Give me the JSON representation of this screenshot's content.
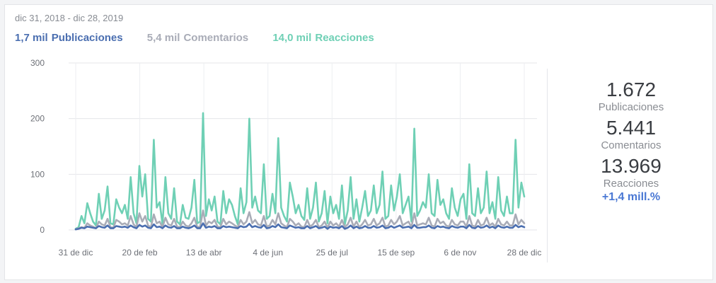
{
  "header": {
    "date_range": "dic 31, 2018 - dic 28, 2019"
  },
  "legend": [
    {
      "value": "1,7 mil",
      "label": "Publicaciones",
      "color": "#4a6eb0"
    },
    {
      "value": "5,4 mil",
      "label": "Comentarios",
      "color": "#a9acb7"
    },
    {
      "value": "14,0 mil",
      "label": "Reacciones",
      "color": "#6fd0b5"
    }
  ],
  "stats": {
    "publicaciones": {
      "value": "1.672",
      "label": "Publicaciones"
    },
    "comentarios": {
      "value": "5.441",
      "label": "Comentarios"
    },
    "reacciones": {
      "value": "13.969",
      "label": "Reacciones",
      "change": "+1,4 mill.%"
    }
  },
  "chart_data": {
    "type": "line",
    "title": "",
    "xlabel": "",
    "ylabel": "",
    "ylim": [
      0,
      300
    ],
    "yticks": [
      0,
      100,
      200,
      300
    ],
    "xticks": [
      "31 de dic",
      "20 de feb",
      "13 de abr",
      "4 de jun",
      "25 de jul",
      "15 de sep",
      "6 de nov",
      "28 de dic"
    ],
    "x_range": [
      "2018-12-31",
      "2019-12-28"
    ],
    "grid": true,
    "legend_position": "top",
    "series": [
      {
        "name": "Reacciones",
        "color": "#6fd0b5",
        "values": [
          2,
          5,
          25,
          12,
          48,
          30,
          15,
          8,
          65,
          20,
          35,
          78,
          12,
          10,
          55,
          40,
          30,
          45,
          20,
          95,
          30,
          12,
          115,
          60,
          100,
          20,
          15,
          162,
          40,
          50,
          10,
          95,
          30,
          20,
          75,
          15,
          10,
          45,
          22,
          20,
          40,
          90,
          12,
          15,
          210,
          25,
          55,
          35,
          60,
          15,
          10,
          70,
          30,
          55,
          45,
          25,
          10,
          75,
          30,
          50,
          200,
          40,
          60,
          35,
          30,
          118,
          20,
          25,
          65,
          30,
          165,
          40,
          25,
          15,
          85,
          60,
          30,
          45,
          25,
          18,
          75,
          20,
          40,
          85,
          15,
          30,
          70,
          12,
          60,
          30,
          45,
          20,
          80,
          10,
          35,
          95,
          20,
          55,
          15,
          40,
          70,
          25,
          35,
          80,
          30,
          45,
          105,
          20,
          25,
          80,
          35,
          60,
          100,
          30,
          45,
          60,
          15,
          182,
          25,
          35,
          50,
          40,
          100,
          30,
          25,
          90,
          45,
          55,
          30,
          20,
          75,
          40,
          25,
          55,
          65,
          20,
          118,
          30,
          25,
          75,
          30,
          40,
          105,
          30,
          50,
          20,
          95,
          35,
          25,
          60,
          30,
          30,
          162,
          40,
          85,
          60
        ]
      },
      {
        "name": "Comentarios",
        "color": "#a9acb7",
        "values": [
          1,
          3,
          5,
          4,
          12,
          8,
          6,
          3,
          15,
          10,
          8,
          20,
          5,
          4,
          18,
          15,
          10,
          12,
          8,
          25,
          10,
          5,
          30,
          15,
          25,
          8,
          5,
          28,
          12,
          15,
          5,
          22,
          10,
          8,
          20,
          6,
          5,
          15,
          8,
          6,
          12,
          22,
          5,
          6,
          35,
          8,
          15,
          12,
          18,
          6,
          5,
          20,
          10,
          15,
          12,
          8,
          5,
          18,
          10,
          15,
          32,
          12,
          18,
          10,
          8,
          25,
          6,
          8,
          18,
          10,
          30,
          12,
          8,
          5,
          20,
          15,
          8,
          12,
          6,
          5,
          18,
          6,
          10,
          18,
          5,
          8,
          15,
          4,
          15,
          8,
          12,
          6,
          18,
          5,
          10,
          22,
          6,
          15,
          5,
          10,
          18,
          8,
          10,
          20,
          8,
          12,
          22,
          6,
          8,
          18,
          10,
          15,
          25,
          8,
          12,
          15,
          5,
          30,
          8,
          10,
          12,
          10,
          22,
          8,
          6,
          20,
          12,
          15,
          8,
          6,
          18,
          10,
          8,
          15,
          15,
          6,
          25,
          8,
          6,
          18,
          8,
          10,
          22,
          8,
          12,
          6,
          20,
          10,
          8,
          15,
          8,
          8,
          28,
          10,
          18,
          12
        ]
      },
      {
        "name": "Publicaciones",
        "color": "#4a6eb0",
        "values": [
          1,
          2,
          4,
          3,
          6,
          5,
          4,
          3,
          7,
          5,
          4,
          8,
          3,
          3,
          7,
          6,
          5,
          6,
          4,
          8,
          5,
          3,
          9,
          6,
          8,
          4,
          3,
          10,
          5,
          6,
          3,
          8,
          5,
          4,
          7,
          3,
          3,
          6,
          4,
          3,
          5,
          8,
          3,
          3,
          12,
          4,
          6,
          5,
          7,
          3,
          3,
          7,
          5,
          6,
          5,
          4,
          3,
          7,
          5,
          6,
          11,
          5,
          7,
          5,
          4,
          9,
          3,
          4,
          7,
          5,
          10,
          5,
          4,
          3,
          8,
          6,
          4,
          5,
          3,
          3,
          7,
          3,
          5,
          7,
          3,
          4,
          6,
          2,
          6,
          4,
          5,
          3,
          7,
          2,
          4,
          8,
          3,
          6,
          3,
          4,
          7,
          4,
          4,
          7,
          4,
          5,
          8,
          3,
          4,
          7,
          4,
          6,
          8,
          4,
          5,
          6,
          3,
          9,
          4,
          4,
          5,
          5,
          8,
          4,
          3,
          7,
          5,
          6,
          4,
          3,
          7,
          5,
          4,
          6,
          6,
          3,
          9,
          4,
          3,
          7,
          4,
          5,
          8,
          4,
          6,
          3,
          8,
          5,
          4,
          6,
          4,
          4,
          9,
          5,
          7,
          5
        ]
      }
    ]
  }
}
